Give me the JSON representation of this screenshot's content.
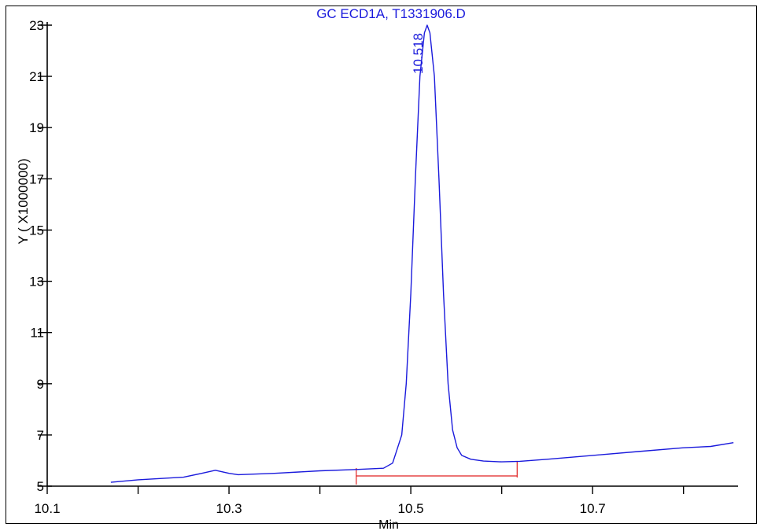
{
  "chart_data": {
    "type": "line",
    "title": "GC ECD1A, T1331906.D",
    "xlabel": "Min",
    "ylabel": "Y ( X1000000)",
    "xlim": [
      10.1,
      10.86
    ],
    "ylim": [
      5,
      23
    ],
    "x_tick_labels": [
      "10.1",
      "10.3",
      "10.5",
      "10.7"
    ],
    "x_tick_values": [
      10.1,
      10.3,
      10.5,
      10.7
    ],
    "x_minor_ticks": [
      10.2,
      10.4,
      10.6,
      10.8
    ],
    "y_tick_labels": [
      "5",
      "7",
      "9",
      "11",
      "13",
      "15",
      "17",
      "19",
      "21",
      "23"
    ],
    "y_tick_values": [
      5,
      7,
      9,
      11,
      13,
      15,
      17,
      19,
      21,
      23
    ],
    "peak_label": "10.518",
    "peak_label_x": 10.518,
    "colors": {
      "trace": "#1a1adc",
      "baseline": "#e02020",
      "axes": "#000000"
    },
    "series": [
      {
        "x": [
          10.17,
          10.2,
          10.25,
          10.27,
          10.285,
          10.3,
          10.31,
          10.35,
          10.4,
          10.44,
          10.47,
          10.48,
          10.49,
          10.495,
          10.5,
          10.505,
          10.51,
          10.515,
          10.518,
          10.521,
          10.526,
          10.531,
          10.536,
          10.541,
          10.546,
          10.551,
          10.556,
          10.566,
          10.58,
          10.6,
          10.62,
          10.65,
          10.7,
          10.75,
          10.8,
          10.83,
          10.855
        ],
        "y": [
          5.15,
          5.25,
          5.35,
          5.5,
          5.62,
          5.5,
          5.45,
          5.5,
          5.6,
          5.65,
          5.7,
          5.9,
          7.0,
          9.0,
          12.5,
          17.0,
          21.0,
          22.7,
          23.0,
          22.7,
          21.0,
          17.0,
          12.5,
          9.0,
          7.2,
          6.5,
          6.2,
          6.05,
          5.98,
          5.95,
          5.97,
          6.05,
          6.2,
          6.35,
          6.5,
          6.55,
          6.7
        ]
      }
    ],
    "integration_baseline": {
      "x_start": 10.44,
      "x_end": 10.617,
      "y": 5.4
    }
  }
}
